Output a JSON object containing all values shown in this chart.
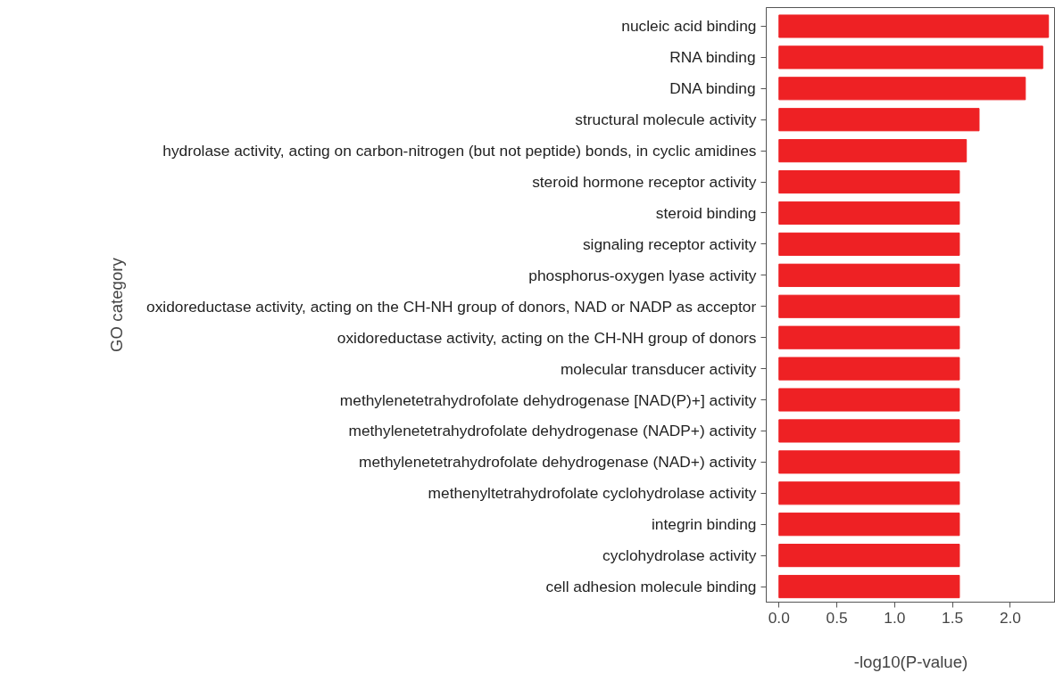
{
  "chart_data": {
    "type": "bar",
    "orientation": "horizontal",
    "xlabel": "-log10(P-value)",
    "ylabel": "GO category",
    "categories": [
      "nucleic acid binding",
      "RNA binding",
      "DNA binding",
      "structural molecule activity",
      "hydrolase activity, acting on carbon-nitrogen (but not peptide) bonds, in cyclic amidines",
      "steroid hormone receptor activity",
      "steroid binding",
      "signaling receptor activity",
      "phosphorus-oxygen lyase activity",
      "oxidoreductase activity, acting on the CH-NH group of donors, NAD or NADP as acceptor",
      "oxidoreductase activity, acting on the CH-NH group of donors",
      "molecular transducer activity",
      "methylenetetrahydrofolate dehydrogenase [NAD(P)+] activity",
      "methylenetetrahydrofolate dehydrogenase (NADP+) activity",
      "methylenetetrahydrofolate dehydrogenase (NAD+) activity",
      "methenyltetrahydrofolate cyclohydrolase activity",
      "integrin binding",
      "cyclohydrolase activity",
      "cell adhesion molecule binding"
    ],
    "values": [
      2.33,
      2.28,
      2.13,
      1.73,
      1.62,
      1.56,
      1.56,
      1.56,
      1.56,
      1.56,
      1.56,
      1.56,
      1.56,
      1.56,
      1.56,
      1.56,
      1.56,
      1.56,
      1.56
    ],
    "color": "#ee2124",
    "xlim": [
      -0.11,
      2.39
    ],
    "xticks": [
      {
        "value": 0,
        "label": "0.0"
      },
      0.5,
      {
        "value": 1,
        "label": "1.0"
      },
      1.5,
      {
        "value": 2,
        "label": "2.0"
      }
    ],
    "grid": false
  }
}
